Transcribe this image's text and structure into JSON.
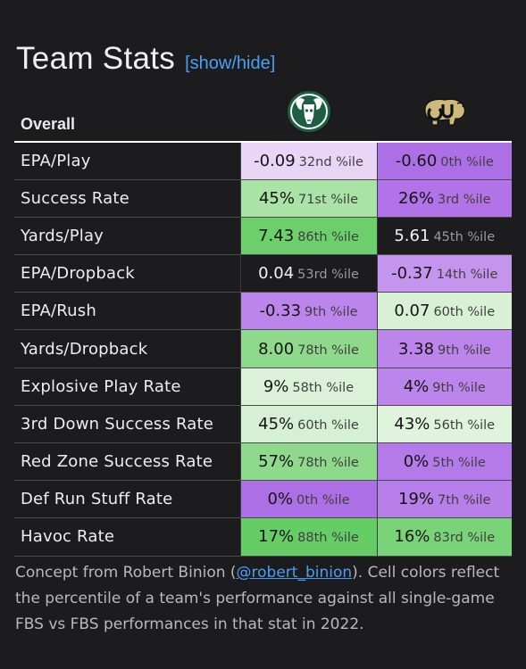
{
  "header": {
    "title": "Team Stats",
    "toggle": "[show/hide]"
  },
  "table": {
    "section": "Overall",
    "teams": [
      {
        "logo": "csu-ram-logo",
        "color": "#1e5e43"
      },
      {
        "logo": "cu-buffalo-logo",
        "color": "#cfb87c"
      }
    ],
    "rows": [
      {
        "label": "EPA/Play",
        "cells": [
          {
            "value": "-0.09",
            "pctile": "32nd %ile",
            "bg": "#e9d6f7",
            "text": "dark"
          },
          {
            "value": "-0.60",
            "pctile": "0th %ile",
            "bg": "#ad6fe6",
            "text": "dark"
          }
        ]
      },
      {
        "label": "Success Rate",
        "cells": [
          {
            "value": "45%",
            "pctile": "71st %ile",
            "bg": "#a9e3a5",
            "text": "dark"
          },
          {
            "value": "26%",
            "pctile": "3rd %ile",
            "bg": "#b273e8",
            "text": "dark"
          }
        ]
      },
      {
        "label": "Yards/Play",
        "cells": [
          {
            "value": "7.43",
            "pctile": "86th %ile",
            "bg": "#6ccf6b",
            "text": "dark"
          },
          {
            "value": "5.61",
            "pctile": "45th %ile",
            "bg": "#1c1c1e",
            "text": "light"
          }
        ]
      },
      {
        "label": "EPA/Dropback",
        "cells": [
          {
            "value": "0.04",
            "pctile": "53rd %ile",
            "bg": "#1c1c1e",
            "text": "light"
          },
          {
            "value": "-0.37",
            "pctile": "14th %ile",
            "bg": "#c595ee",
            "text": "dark"
          }
        ]
      },
      {
        "label": "EPA/Rush",
        "cells": [
          {
            "value": "-0.33",
            "pctile": "9th %ile",
            "bg": "#bb85ec",
            "text": "dark"
          },
          {
            "value": "0.07",
            "pctile": "60th %ile",
            "bg": "#d8f1d5",
            "text": "dark"
          }
        ]
      },
      {
        "label": "Yards/Dropback",
        "cells": [
          {
            "value": "8.00",
            "pctile": "78th %ile",
            "bg": "#8fd98c",
            "text": "dark"
          },
          {
            "value": "3.38",
            "pctile": "9th %ile",
            "bg": "#bb85ec",
            "text": "dark"
          }
        ]
      },
      {
        "label": "Explosive Play Rate",
        "cells": [
          {
            "value": "9%",
            "pctile": "58th %ile",
            "bg": "#dbf2d8",
            "text": "dark"
          },
          {
            "value": "4%",
            "pctile": "9th %ile",
            "bg": "#bb85ec",
            "text": "dark"
          }
        ]
      },
      {
        "label": "3rd Down Success Rate",
        "cells": [
          {
            "value": "45%",
            "pctile": "60th %ile",
            "bg": "#d6f0d3",
            "text": "dark"
          },
          {
            "value": "43%",
            "pctile": "56th %ile",
            "bg": "#e0f4dd",
            "text": "dark"
          }
        ]
      },
      {
        "label": "Red Zone Success Rate",
        "cells": [
          {
            "value": "57%",
            "pctile": "78th %ile",
            "bg": "#8fd98c",
            "text": "dark"
          },
          {
            "value": "0%",
            "pctile": "5th %ile",
            "bg": "#b57ae9",
            "text": "dark"
          }
        ]
      },
      {
        "label": "Def Run Stuff Rate",
        "cells": [
          {
            "value": "0%",
            "pctile": "0th %ile",
            "bg": "#ad6fe6",
            "text": "dark"
          },
          {
            "value": "19%",
            "pctile": "7th %ile",
            "bg": "#b87fea",
            "text": "dark"
          }
        ]
      },
      {
        "label": "Havoc Rate",
        "cells": [
          {
            "value": "17%",
            "pctile": "88th %ile",
            "bg": "#66cc66",
            "text": "dark"
          },
          {
            "value": "16%",
            "pctile": "83rd %ile",
            "bg": "#79d377",
            "text": "dark"
          }
        ]
      }
    ]
  },
  "footer": {
    "text_before": "Concept from Robert Binion (",
    "link": "@robert_binion",
    "text_after": "). Cell colors reflect the percentile of a team's performance against all single-game FBS vs FBS performances in that stat in 2022."
  }
}
